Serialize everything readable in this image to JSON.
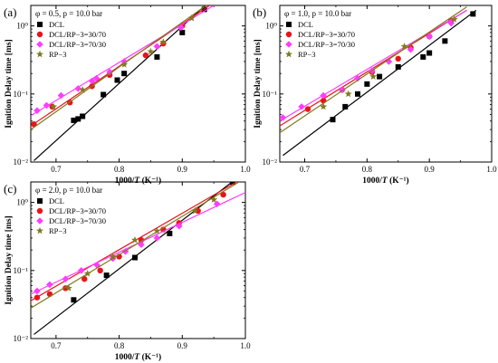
{
  "figure": {
    "ylabel": "Ignition Delay time [ms]",
    "xlabel_prefix": "1000/",
    "xlabel_var": "T",
    "xlabel_suffix": " (K⁻¹)"
  },
  "colors": {
    "DCL": "#000000",
    "DCL/RP−3=30/70": "#e8141b",
    "DCL/RP−3=70/30": "#ff3dff",
    "RP−3": "#7f7a1f"
  },
  "chart_data": [
    {
      "type": "scatter",
      "panel": "(a)",
      "condition": "φ = 0.5, p = 10.0 bar",
      "xlabel": "1000/T (K⁻¹)",
      "ylabel": "Ignition Delay time [ms]",
      "xlim": [
        0.66,
        1.0
      ],
      "ylim": [
        0.01,
        2
      ],
      "yscale": "log",
      "xticks": [
        "0.7",
        "0.8",
        "0.9",
        "1.0"
      ],
      "yticks": [
        "10⁻²",
        "10⁻¹",
        "10⁰"
      ],
      "legend_position": "top-left",
      "series": [
        {
          "name": "DCL",
          "marker": "square",
          "x": [
            0.728,
            0.735,
            0.742,
            0.775,
            0.797,
            0.808,
            0.86,
            0.9,
            0.935
          ],
          "y": [
            0.041,
            0.043,
            0.047,
            0.098,
            0.16,
            0.2,
            0.35,
            0.8,
            1.75
          ],
          "fit": [
            [
              0.665,
              0.0105
            ],
            [
              0.95,
              2.6
            ]
          ]
        },
        {
          "name": "DCL/RP−3=30/70",
          "marker": "circle",
          "x": [
            0.665,
            0.694,
            0.722,
            0.757,
            0.785,
            0.842,
            0.87,
            0.9
          ],
          "y": [
            0.036,
            0.065,
            0.075,
            0.13,
            0.19,
            0.37,
            0.55,
            1.0
          ],
          "fit": [
            [
              0.66,
              0.034
            ],
            [
              0.95,
              2.2
            ]
          ]
        },
        {
          "name": "DCL/RP−3=70/30",
          "marker": "diamond",
          "x": [
            0.67,
            0.685,
            0.708,
            0.735,
            0.757,
            0.764,
            0.785,
            0.808,
            0.86,
            0.898
          ],
          "y": [
            0.057,
            0.068,
            0.095,
            0.12,
            0.155,
            0.17,
            0.21,
            0.3,
            0.5,
            0.95
          ],
          "fit": [
            [
              0.66,
              0.048
            ],
            [
              0.95,
              2.0
            ]
          ]
        },
        {
          "name": "RP−3",
          "marker": "star",
          "x": [
            0.696,
            0.742,
            0.808,
            0.85,
            0.87,
            0.915
          ],
          "y": [
            0.065,
            0.115,
            0.27,
            0.42,
            0.58,
            1.3
          ],
          "fit": [
            [
              0.66,
              0.03
            ],
            [
              0.95,
              2.4
            ]
          ]
        }
      ]
    },
    {
      "type": "scatter",
      "panel": "(b)",
      "condition": "φ = 1.0, p = 10.0 bar",
      "xlabel": "1000/T (K⁻¹)",
      "ylabel": "Ignition Delay time [ms]",
      "xlim": [
        0.66,
        1.0
      ],
      "ylim": [
        0.01,
        2
      ],
      "yscale": "log",
      "xticks": [
        "0.7",
        "0.8",
        "0.9",
        "1.0"
      ],
      "yticks": [
        "10⁻²",
        "10⁻¹",
        "10⁰"
      ],
      "legend_position": "top-left",
      "series": [
        {
          "name": "DCL",
          "marker": "square",
          "x": [
            0.745,
            0.765,
            0.785,
            0.8,
            0.82,
            0.85,
            0.89,
            0.9,
            0.925,
            0.97
          ],
          "y": [
            0.042,
            0.065,
            0.1,
            0.14,
            0.18,
            0.25,
            0.35,
            0.4,
            0.6,
            1.5
          ],
          "fit": [
            [
              0.665,
              0.0125
            ],
            [
              0.975,
              1.7
            ]
          ]
        },
        {
          "name": "DCL/RP−3=30/70",
          "marker": "circle",
          "x": [
            0.705,
            0.73,
            0.76,
            0.808,
            0.85,
            0.87,
            0.9,
            0.935
          ],
          "y": [
            0.06,
            0.08,
            0.115,
            0.21,
            0.33,
            0.48,
            0.7,
            1.2
          ],
          "fit": [
            [
              0.66,
              0.034
            ],
            [
              0.96,
              1.7
            ]
          ]
        },
        {
          "name": "DCL/RP−3=70/30",
          "marker": "diamond",
          "x": [
            0.665,
            0.695,
            0.73,
            0.76,
            0.785,
            0.808,
            0.835,
            0.87,
            0.9,
            0.935
          ],
          "y": [
            0.045,
            0.065,
            0.095,
            0.115,
            0.17,
            0.22,
            0.3,
            0.45,
            0.7,
            1.1
          ],
          "fit": [
            [
              0.66,
              0.04
            ],
            [
              0.96,
              1.7
            ]
          ]
        },
        {
          "name": "RP−3",
          "marker": "star",
          "x": [
            0.73,
            0.77,
            0.81,
            0.86,
            0.94
          ],
          "y": [
            0.065,
            0.1,
            0.18,
            0.5,
            1.25
          ],
          "fit": [
            [
              0.66,
              0.027
            ],
            [
              0.96,
              1.9
            ]
          ]
        }
      ]
    },
    {
      "type": "scatter",
      "panel": "(c)",
      "condition": "φ = 2.0, p = 10.0 bar",
      "xlabel": "1000/T (K⁻¹)",
      "ylabel": "Ignition Delay time [ms]",
      "xlim": [
        0.66,
        1.0
      ],
      "ylim": [
        0.01,
        2
      ],
      "yscale": "log",
      "xticks": [
        "0.7",
        "0.8",
        "0.9",
        "1.0"
      ],
      "yticks": [
        "10⁻²",
        "10⁻¹",
        "10⁰"
      ],
      "legend_position": "top-left",
      "series": [
        {
          "name": "DCL",
          "marker": "square",
          "x": [
            0.728,
            0.78,
            0.825,
            0.88,
            0.98
          ],
          "y": [
            0.037,
            0.085,
            0.155,
            0.35,
            2.0
          ],
          "fit": [
            [
              0.665,
              0.0115
            ],
            [
              0.99,
              2.4
            ]
          ]
        },
        {
          "name": "DCL/RP−3=30/70",
          "marker": "circle",
          "x": [
            0.67,
            0.69,
            0.715,
            0.745,
            0.77,
            0.8,
            0.835,
            0.87,
            0.895,
            0.925,
            0.965
          ],
          "y": [
            0.04,
            0.045,
            0.055,
            0.075,
            0.1,
            0.16,
            0.28,
            0.4,
            0.5,
            0.75,
            1.3
          ],
          "fit": [
            [
              0.66,
              0.036
            ],
            [
              0.99,
              2.1
            ]
          ]
        },
        {
          "name": "DCL/RP−3=70/30",
          "marker": "diamond",
          "x": [
            0.67,
            0.69,
            0.715,
            0.74,
            0.765,
            0.79,
            0.81,
            0.835,
            0.86,
            0.895,
            0.955
          ],
          "y": [
            0.05,
            0.062,
            0.075,
            0.1,
            0.12,
            0.15,
            0.19,
            0.24,
            0.3,
            0.45,
            0.95
          ],
          "fit": [
            [
              0.66,
              0.045
            ],
            [
              1.0,
              1.4
            ]
          ]
        },
        {
          "name": "RP−3",
          "marker": "star",
          "x": [
            0.72,
            0.75,
            0.79,
            0.825,
            0.86,
            0.92,
            0.95
          ],
          "y": [
            0.055,
            0.09,
            0.16,
            0.28,
            0.38,
            0.75,
            1.1
          ],
          "fit": [
            [
              0.66,
              0.028
            ],
            [
              0.99,
              2.0
            ]
          ]
        }
      ]
    }
  ]
}
